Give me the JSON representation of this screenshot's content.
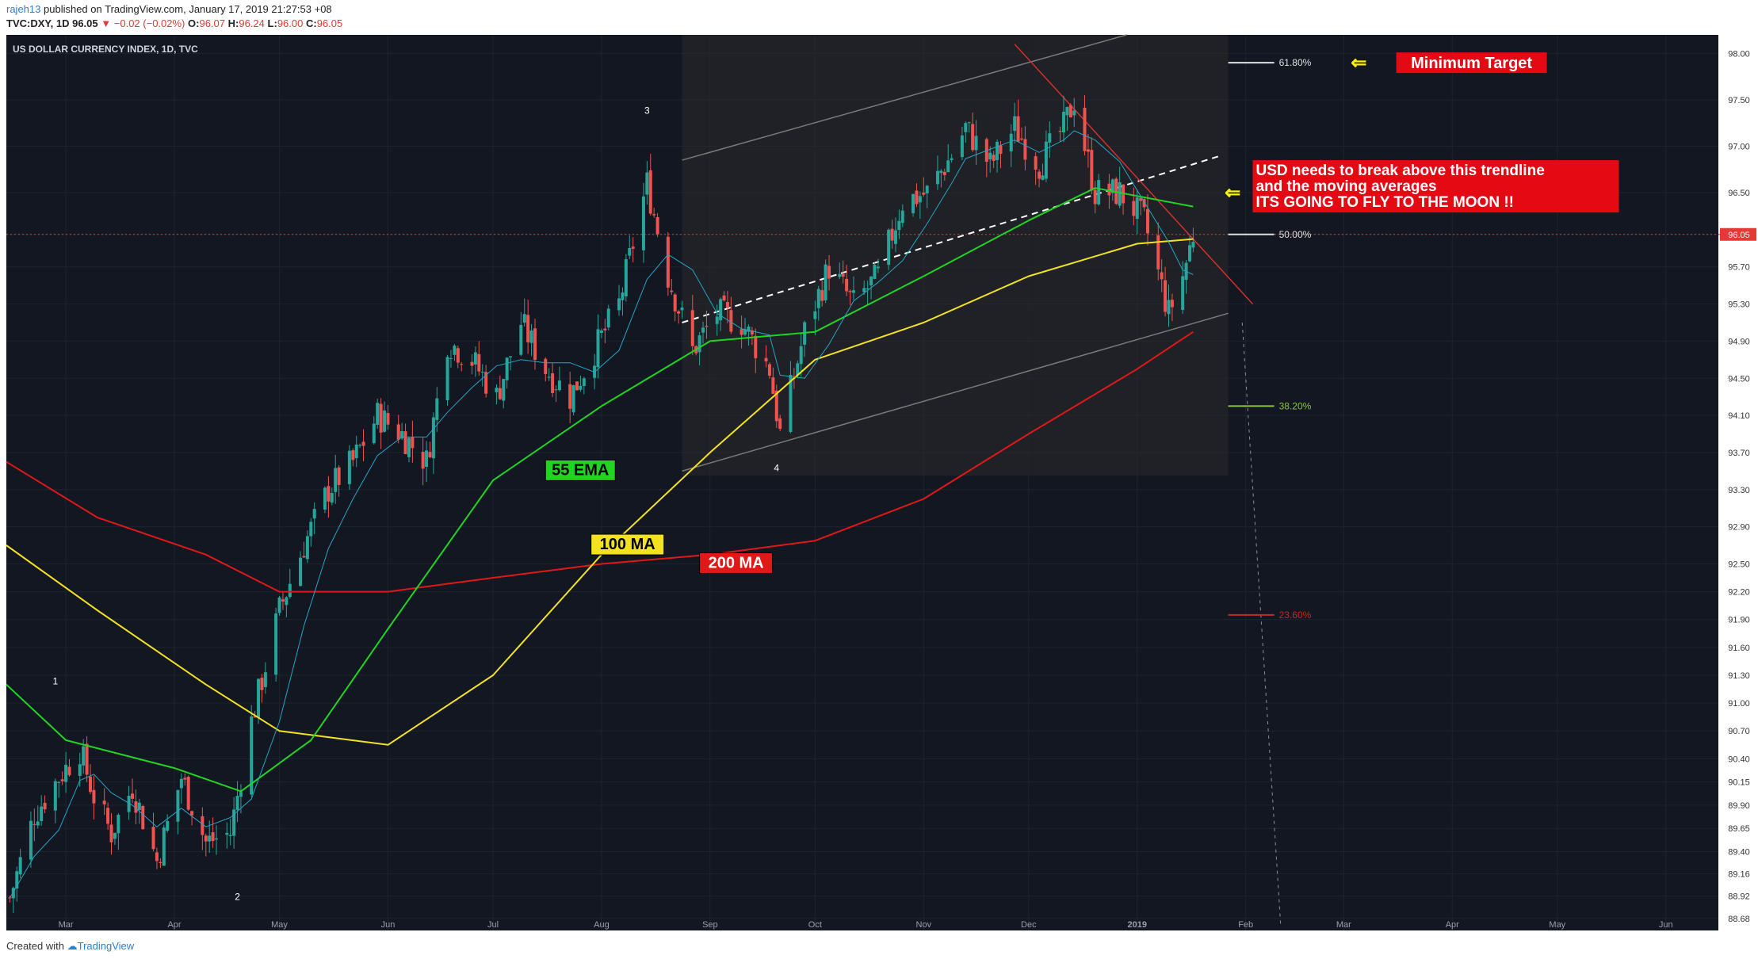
{
  "header": {
    "user": "rajeh13",
    "published": "published on TradingView.com, January 17, 2019 21:27:53 +08",
    "symbol": "TVC:DXY, 1D",
    "last": "96.05",
    "change": "−0.02 (−0.02%)",
    "ohlc": {
      "o": "96.07",
      "h": "96.24",
      "l": "96.00",
      "c": "96.05"
    }
  },
  "footer": {
    "created_with": "Created with",
    "brand": "TradingView"
  },
  "chart_data": {
    "type": "candlestick",
    "title": "US DOLLAR CURRENCY INDEX, 1D, TVC",
    "last_price": "96.05",
    "ylim": [
      88.55,
      98.2
    ],
    "y_ticks": [
      "98.00",
      "97.50",
      "97.00",
      "96.50",
      "96.05",
      "95.70",
      "95.30",
      "94.90",
      "94.50",
      "94.10",
      "93.70",
      "93.30",
      "92.90",
      "92.50",
      "92.20",
      "91.90",
      "91.60",
      "91.30",
      "91.00",
      "90.70",
      "90.40",
      "90.15",
      "89.90",
      "89.65",
      "89.40",
      "89.16",
      "88.92",
      "88.68"
    ],
    "x_ticks": [
      {
        "label": "Mar",
        "d": "2018-03-01"
      },
      {
        "label": "Apr",
        "d": "2018-04-01"
      },
      {
        "label": "May",
        "d": "2018-05-01"
      },
      {
        "label": "Jun",
        "d": "2018-06-01"
      },
      {
        "label": "Jul",
        "d": "2018-07-01"
      },
      {
        "label": "Aug",
        "d": "2018-08-01"
      },
      {
        "label": "Sep",
        "d": "2018-09-01"
      },
      {
        "label": "Oct",
        "d": "2018-10-01"
      },
      {
        "label": "Nov",
        "d": "2018-11-01"
      },
      {
        "label": "Dec",
        "d": "2018-12-01"
      },
      {
        "label": "2019",
        "d": "2019-01-01"
      },
      {
        "label": "Feb",
        "d": "2019-02-01"
      },
      {
        "label": "Mar",
        "d": "2019-03-01"
      },
      {
        "label": "Apr",
        "d": "2019-04-01"
      },
      {
        "label": "May",
        "d": "2019-05-01"
      },
      {
        "label": "Jun",
        "d": "2019-06-01"
      }
    ],
    "x_range": [
      "2018-02-12",
      "2019-06-16"
    ],
    "closes": [
      {
        "d": "2018-02-13",
        "c": 88.9
      },
      {
        "d": "2018-02-20",
        "c": 89.8
      },
      {
        "d": "2018-02-27",
        "c": 90.2
      },
      {
        "d": "2018-03-05",
        "c": 90.5
      },
      {
        "d": "2018-03-09",
        "c": 90.0
      },
      {
        "d": "2018-03-14",
        "c": 89.6
      },
      {
        "d": "2018-03-20",
        "c": 90.1
      },
      {
        "d": "2018-03-27",
        "c": 89.3
      },
      {
        "d": "2018-04-03",
        "c": 90.2
      },
      {
        "d": "2018-04-10",
        "c": 89.5
      },
      {
        "d": "2018-04-17",
        "c": 89.6
      },
      {
        "d": "2018-04-23",
        "c": 90.8
      },
      {
        "d": "2018-05-01",
        "c": 92.0
      },
      {
        "d": "2018-05-08",
        "c": 92.7
      },
      {
        "d": "2018-05-15",
        "c": 93.3
      },
      {
        "d": "2018-05-22",
        "c": 93.6
      },
      {
        "d": "2018-05-29",
        "c": 94.1
      },
      {
        "d": "2018-06-05",
        "c": 93.9
      },
      {
        "d": "2018-06-12",
        "c": 93.6
      },
      {
        "d": "2018-06-18",
        "c": 94.9
      },
      {
        "d": "2018-06-25",
        "c": 94.7
      },
      {
        "d": "2018-07-02",
        "c": 94.3
      },
      {
        "d": "2018-07-09",
        "c": 95.1
      },
      {
        "d": "2018-07-16",
        "c": 94.6
      },
      {
        "d": "2018-07-23",
        "c": 94.3
      },
      {
        "d": "2018-07-30",
        "c": 94.8
      },
      {
        "d": "2018-08-06",
        "c": 95.3
      },
      {
        "d": "2018-08-14",
        "c": 96.6
      },
      {
        "d": "2018-08-20",
        "c": 95.6
      },
      {
        "d": "2018-08-27",
        "c": 94.8
      },
      {
        "d": "2018-09-03",
        "c": 95.2
      },
      {
        "d": "2018-09-10",
        "c": 95.1
      },
      {
        "d": "2018-09-18",
        "c": 94.6
      },
      {
        "d": "2018-09-21",
        "c": 93.9
      },
      {
        "d": "2018-09-28",
        "c": 95.0
      },
      {
        "d": "2018-10-05",
        "c": 95.7
      },
      {
        "d": "2018-10-12",
        "c": 95.3
      },
      {
        "d": "2018-10-19",
        "c": 95.6
      },
      {
        "d": "2018-10-26",
        "c": 96.4
      },
      {
        "d": "2018-11-02",
        "c": 96.5
      },
      {
        "d": "2018-11-09",
        "c": 96.9
      },
      {
        "d": "2018-11-13",
        "c": 97.2
      },
      {
        "d": "2018-11-20",
        "c": 96.8
      },
      {
        "d": "2018-11-27",
        "c": 97.2
      },
      {
        "d": "2018-12-04",
        "c": 96.8
      },
      {
        "d": "2018-12-11",
        "c": 97.2
      },
      {
        "d": "2018-12-14",
        "c": 97.5
      },
      {
        "d": "2018-12-20",
        "c": 96.5
      },
      {
        "d": "2018-12-27",
        "c": 96.5
      },
      {
        "d": "2019-01-03",
        "c": 96.2
      },
      {
        "d": "2019-01-10",
        "c": 95.2
      },
      {
        "d": "2019-01-14",
        "c": 95.6
      },
      {
        "d": "2019-01-17",
        "c": 96.05
      }
    ],
    "ma_200": [
      {
        "d": "2018-02-12",
        "v": 93.6
      },
      {
        "d": "2018-03-10",
        "v": 93.0
      },
      {
        "d": "2018-04-10",
        "v": 92.6
      },
      {
        "d": "2018-05-01",
        "v": 92.2
      },
      {
        "d": "2018-06-01",
        "v": 92.2
      },
      {
        "d": "2018-07-01",
        "v": 92.35
      },
      {
        "d": "2018-08-01",
        "v": 92.5
      },
      {
        "d": "2018-09-01",
        "v": 92.6
      },
      {
        "d": "2018-10-01",
        "v": 92.75
      },
      {
        "d": "2018-11-01",
        "v": 93.2
      },
      {
        "d": "2018-12-01",
        "v": 93.9
      },
      {
        "d": "2019-01-01",
        "v": 94.6
      },
      {
        "d": "2019-01-17",
        "v": 95.0
      }
    ],
    "ma_100": [
      {
        "d": "2018-02-12",
        "v": 92.7
      },
      {
        "d": "2018-03-10",
        "v": 92.0
      },
      {
        "d": "2018-04-10",
        "v": 91.2
      },
      {
        "d": "2018-05-01",
        "v": 90.7
      },
      {
        "d": "2018-06-01",
        "v": 90.55
      },
      {
        "d": "2018-07-01",
        "v": 91.3
      },
      {
        "d": "2018-08-01",
        "v": 92.6
      },
      {
        "d": "2018-09-01",
        "v": 93.7
      },
      {
        "d": "2018-10-01",
        "v": 94.7
      },
      {
        "d": "2018-11-01",
        "v": 95.1
      },
      {
        "d": "2018-12-01",
        "v": 95.6
      },
      {
        "d": "2019-01-01",
        "v": 95.95
      },
      {
        "d": "2019-01-17",
        "v": 96.0
      }
    ],
    "ema_55": [
      {
        "d": "2018-02-12",
        "v": 91.2
      },
      {
        "d": "2018-03-01",
        "v": 90.6
      },
      {
        "d": "2018-04-01",
        "v": 90.3
      },
      {
        "d": "2018-04-20",
        "v": 90.05
      },
      {
        "d": "2018-05-10",
        "v": 90.6
      },
      {
        "d": "2018-06-01",
        "v": 91.8
      },
      {
        "d": "2018-07-01",
        "v": 93.4
      },
      {
        "d": "2018-08-01",
        "v": 94.2
      },
      {
        "d": "2018-09-01",
        "v": 94.9
      },
      {
        "d": "2018-10-01",
        "v": 95.0
      },
      {
        "d": "2018-11-01",
        "v": 95.6
      },
      {
        "d": "2018-12-01",
        "v": 96.2
      },
      {
        "d": "2018-12-20",
        "v": 96.55
      },
      {
        "d": "2019-01-10",
        "v": 96.4
      },
      {
        "d": "2019-01-17",
        "v": 96.35
      }
    ],
    "levels": [
      {
        "label": "61.80%",
        "value": 97.9,
        "color": "#e0e0e0"
      },
      {
        "label": "50.00%",
        "value": 96.05,
        "color": "#e0e0e0"
      },
      {
        "label": "38.20%",
        "value": 94.2,
        "color": "#8bc34a"
      },
      {
        "label": "23.60%",
        "value": 91.95,
        "color": "#c62828"
      }
    ],
    "waves": [
      {
        "label": "1",
        "d": "2018-02-26",
        "y": 91.2
      },
      {
        "label": "2",
        "d": "2018-04-19",
        "y": 88.88
      },
      {
        "label": "3",
        "d": "2018-08-14",
        "y": 97.35
      },
      {
        "label": "4",
        "d": "2018-09-20",
        "y": 93.5
      }
    ],
    "annotations": {
      "ema_label": "55 EMA",
      "ma100_label": "100 MA",
      "ma200_label": "200 MA",
      "target": "Minimum Target",
      "note_lines": [
        "USD needs to break above this trendline",
        "and the moving averages",
        "ITS GOING TO FLY TO THE MOON !!"
      ]
    },
    "colors": {
      "bg": "#131722",
      "up": "#26a69a",
      "down": "#ef5350",
      "ma200": "#e01818",
      "ma100": "#f2e221",
      "ema55": "#21d421",
      "ema_fast": "#26a5c6",
      "note_bg": "#e50914",
      "target_arrow": "#fff200"
    }
  }
}
